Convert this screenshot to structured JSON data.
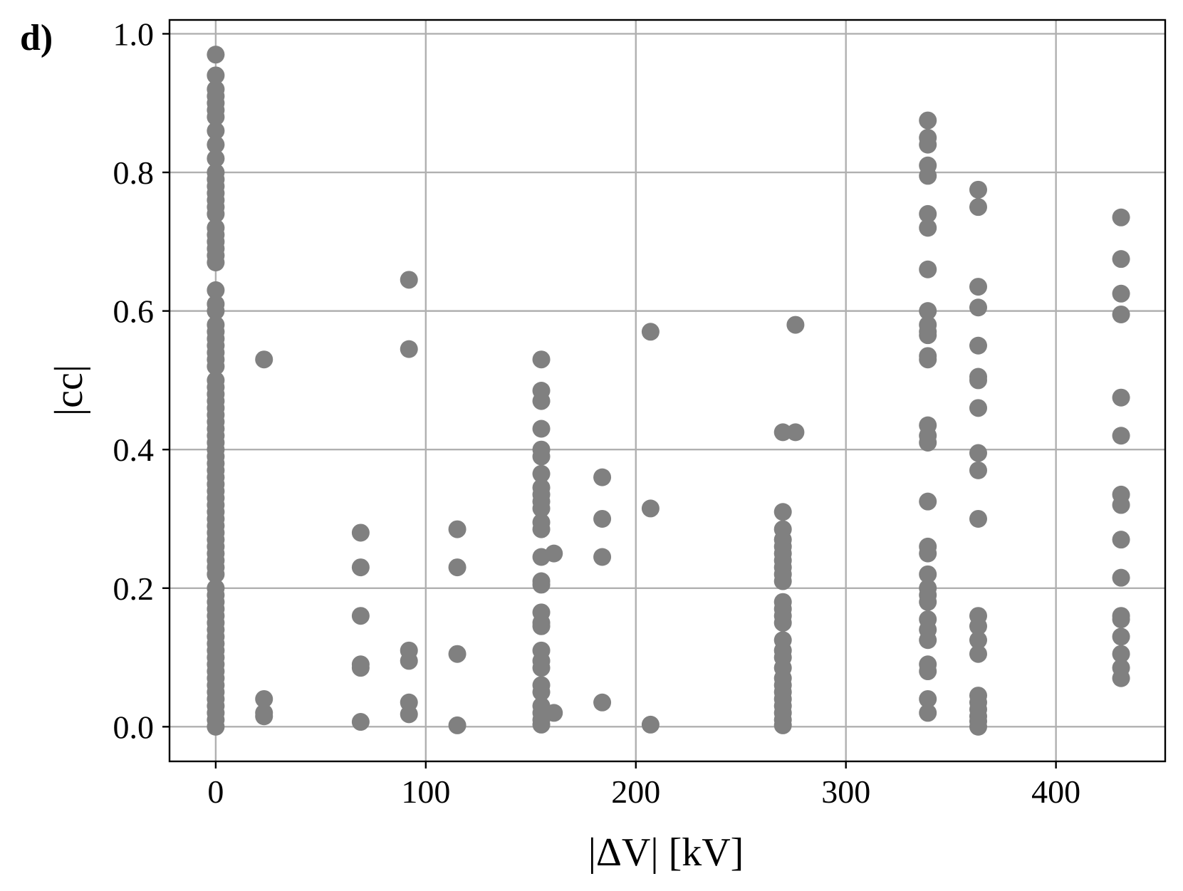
{
  "panel_label": "d)",
  "colors": {
    "marker": "#808080",
    "grid": "#b0b0b0",
    "axis": "#000000"
  },
  "chart_data": {
    "type": "scatter",
    "xlabel": "|ΔV| [kV]",
    "ylabel": "|cc|",
    "xlim": [
      -22,
      452
    ],
    "ylim": [
      -0.05,
      1.02
    ],
    "xticks": [
      0,
      100,
      200,
      300,
      400
    ],
    "xtick_labels": [
      "0",
      "100",
      "200",
      "300",
      "400"
    ],
    "yticks": [
      0.0,
      0.2,
      0.4,
      0.6,
      0.8,
      1.0
    ],
    "ytick_labels": [
      "0.0",
      "0.2",
      "0.4",
      "0.6",
      "0.8",
      "1.0"
    ],
    "grid": true,
    "groups": [
      {
        "x": 0,
        "y": [
          0.97,
          0.94,
          0.92,
          0.91,
          0.9,
          0.89,
          0.88,
          0.86,
          0.84,
          0.82,
          0.8,
          0.79,
          0.78,
          0.77,
          0.76,
          0.75,
          0.74,
          0.72,
          0.71,
          0.7,
          0.69,
          0.68,
          0.67,
          0.63,
          0.61,
          0.6,
          0.58,
          0.57,
          0.56,
          0.55,
          0.54,
          0.53,
          0.52,
          0.5,
          0.49,
          0.48,
          0.47,
          0.46,
          0.45,
          0.44,
          0.43,
          0.42,
          0.41,
          0.4,
          0.39,
          0.38,
          0.37,
          0.36,
          0.35,
          0.34,
          0.33,
          0.32,
          0.31,
          0.3,
          0.29,
          0.28,
          0.27,
          0.26,
          0.25,
          0.24,
          0.23,
          0.22,
          0.2,
          0.19,
          0.18,
          0.17,
          0.16,
          0.15,
          0.14,
          0.13,
          0.12,
          0.11,
          0.1,
          0.09,
          0.08,
          0.07,
          0.06,
          0.05,
          0.04,
          0.03,
          0.02,
          0.01,
          0.0
        ]
      },
      {
        "x": 23,
        "y": [
          0.53,
          0.04,
          0.02,
          0.015
        ]
      },
      {
        "x": 69,
        "y": [
          0.28,
          0.23,
          0.16,
          0.09,
          0.085,
          0.007
        ]
      },
      {
        "x": 92,
        "y": [
          0.645,
          0.545,
          0.11,
          0.095,
          0.035,
          0.018
        ]
      },
      {
        "x": 115,
        "y": [
          0.285,
          0.23,
          0.105,
          0.002
        ]
      },
      {
        "x": 155,
        "y": [
          0.53,
          0.485,
          0.47,
          0.43,
          0.4,
          0.39,
          0.365,
          0.345,
          0.335,
          0.325,
          0.315,
          0.295,
          0.285,
          0.245,
          0.21,
          0.205,
          0.165,
          0.15,
          0.145,
          0.11,
          0.095,
          0.085,
          0.06,
          0.05,
          0.03,
          0.02,
          0.01,
          0.003
        ]
      },
      {
        "x": 161,
        "y": [
          0.25,
          0.02
        ]
      },
      {
        "x": 184,
        "y": [
          0.36,
          0.3,
          0.245,
          0.035
        ]
      },
      {
        "x": 207,
        "y": [
          0.57,
          0.315,
          0.003
        ]
      },
      {
        "x": 270,
        "y": [
          0.425,
          0.31,
          0.285,
          0.27,
          0.26,
          0.25,
          0.24,
          0.23,
          0.22,
          0.21,
          0.18,
          0.17,
          0.16,
          0.15,
          0.125,
          0.11,
          0.1,
          0.085,
          0.07,
          0.06,
          0.05,
          0.04,
          0.03,
          0.02,
          0.01,
          0.002
        ]
      },
      {
        "x": 276,
        "y": [
          0.58,
          0.425
        ]
      },
      {
        "x": 339,
        "y": [
          0.875,
          0.85,
          0.84,
          0.81,
          0.795,
          0.74,
          0.72,
          0.66,
          0.6,
          0.58,
          0.57,
          0.565,
          0.535,
          0.53,
          0.435,
          0.42,
          0.41,
          0.325,
          0.26,
          0.25,
          0.22,
          0.2,
          0.19,
          0.18,
          0.155,
          0.14,
          0.125,
          0.09,
          0.08,
          0.04,
          0.02
        ]
      },
      {
        "x": 363,
        "y": [
          0.775,
          0.75,
          0.635,
          0.605,
          0.55,
          0.505,
          0.5,
          0.46,
          0.395,
          0.37,
          0.3,
          0.16,
          0.145,
          0.125,
          0.105,
          0.045,
          0.035,
          0.025,
          0.015,
          0.008,
          0.0
        ]
      },
      {
        "x": 431,
        "y": [
          0.735,
          0.675,
          0.625,
          0.595,
          0.475,
          0.42,
          0.335,
          0.32,
          0.27,
          0.215,
          0.16,
          0.155,
          0.13,
          0.105,
          0.085,
          0.07
        ]
      }
    ]
  }
}
